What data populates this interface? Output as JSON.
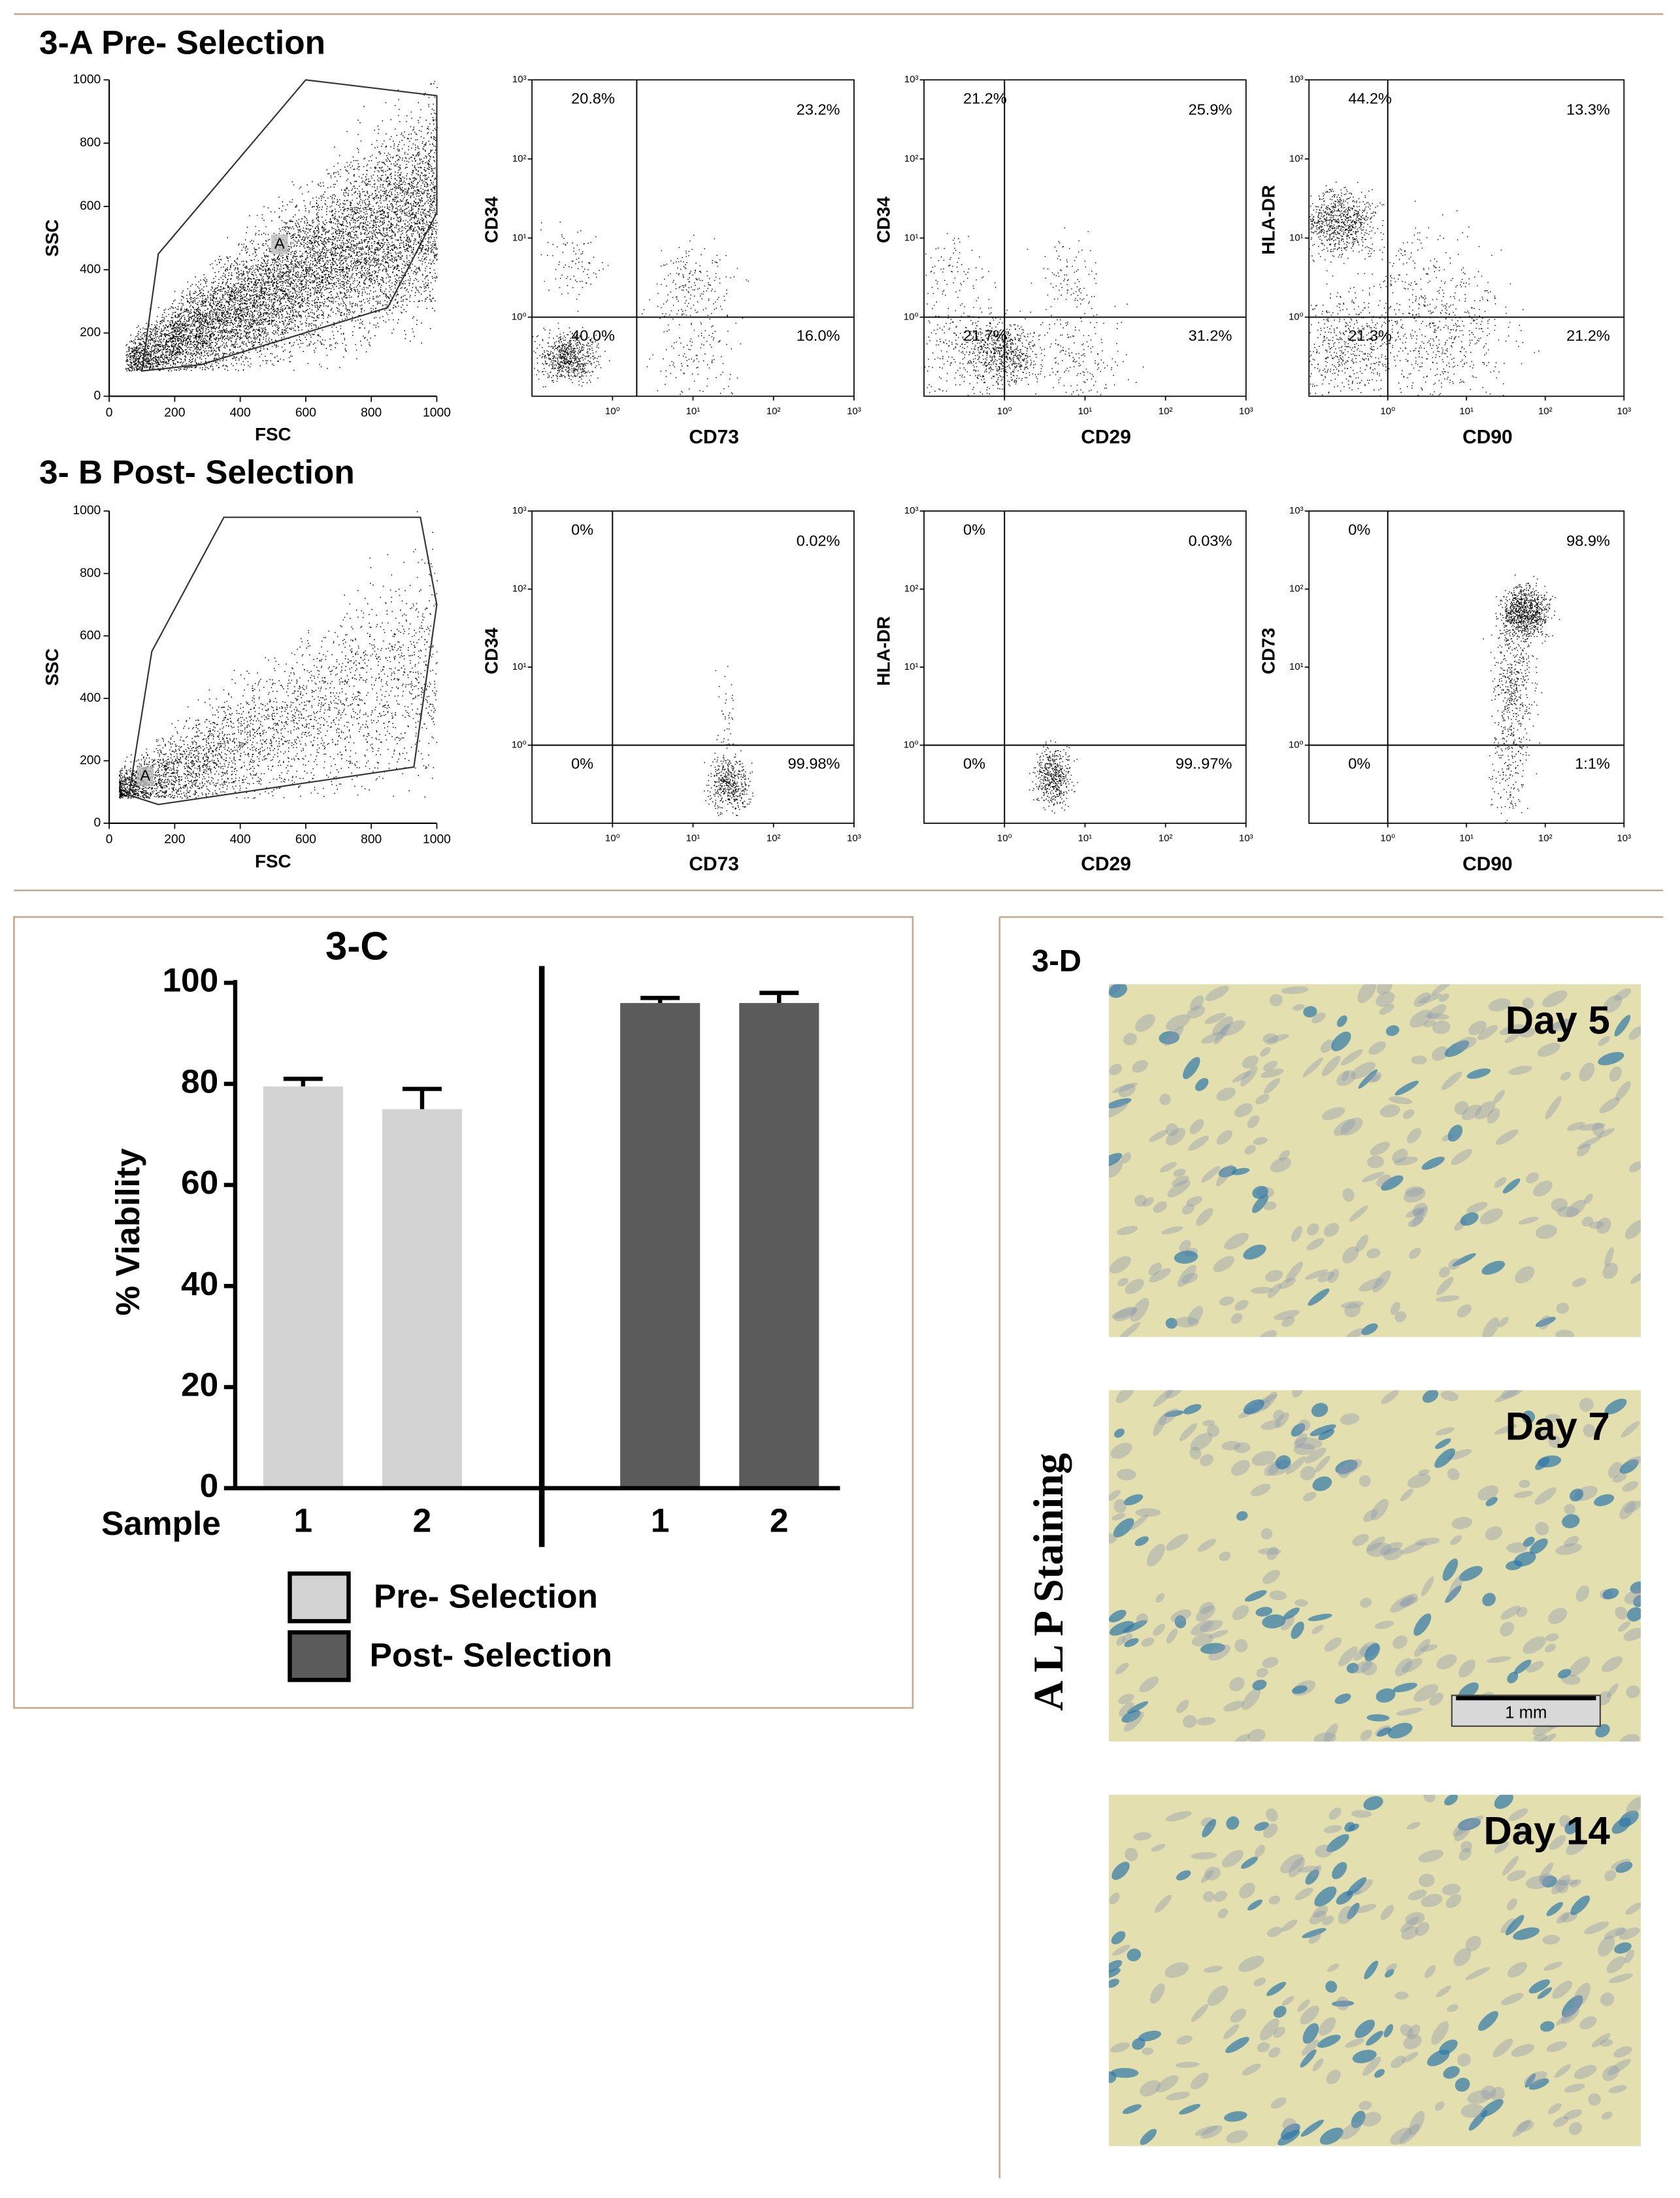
{
  "figure": {
    "panels": [
      {
        "title": "3-A Pre- Selection",
        "gate_plot": {
          "xlabel": "FSC",
          "ylabel": "SSC",
          "gate_label": "A"
        },
        "flow_plots": [
          {
            "xlabel": "CD73",
            "ylabel": "CD34",
            "gate": [
              2,
              1
            ],
            "quadrants": [
              "20.8%",
              "23.2%",
              "40.0%",
              "16.0%"
            ]
          },
          {
            "xlabel": "CD29",
            "ylabel": "CD34",
            "gate": [
              1,
              1
            ],
            "quadrants": [
              "21.2%",
              "25.9%",
              "21.7%",
              "31.2%"
            ]
          },
          {
            "xlabel": "CD90",
            "ylabel": "HLA-DR",
            "gate": [
              1,
              1
            ],
            "quadrants": [
              "44.2%",
              "13.3%",
              "21.3%",
              "21.2%"
            ]
          }
        ]
      },
      {
        "title": "3- B Post- Selection",
        "gate_plot": {
          "xlabel": "FSC",
          "ylabel": "SSC",
          "gate_label": "A"
        },
        "flow_plots": [
          {
            "xlabel": "CD73",
            "ylabel": "CD34",
            "gate": [
              1,
              1
            ],
            "quadrants": [
              "0%",
              "0.02%",
              "0%",
              "99.98%"
            ]
          },
          {
            "xlabel": "CD29",
            "ylabel": "HLA-DR",
            "gate": [
              1,
              1
            ],
            "quadrants": [
              "0%",
              "0.03%",
              "0%",
              "99..97%"
            ]
          },
          {
            "xlabel": "CD90",
            "ylabel": "CD73",
            "gate": [
              1,
              1
            ],
            "quadrants": [
              "0%",
              "98.9%",
              "0%",
              "1:1%"
            ]
          }
        ]
      }
    ],
    "gate_axis": {
      "lim": [
        0,
        1000
      ],
      "ticks": [
        0,
        200,
        400,
        600,
        800,
        1000
      ]
    },
    "log_axis": {
      "lim": [
        0.1,
        1000
      ],
      "log": true,
      "ticks": [
        {
          "value": 1,
          "label": "10⁰"
        },
        {
          "value": 10,
          "label": "10¹"
        },
        {
          "value": 100,
          "label": "10²"
        },
        {
          "value": 1000,
          "label": "10³"
        }
      ]
    },
    "panel_d": {
      "label": "3-D",
      "side_label": "A L P Staining",
      "images": [
        "Day 5",
        "Day 7",
        "Day 14"
      ],
      "scale_bar": "1 mm"
    }
  },
  "chart_data": {
    "type": "bar",
    "title": "3-C",
    "xlabel": "Sample",
    "ylabel": "% Viability",
    "categories": [
      "1",
      "2",
      "1",
      "2"
    ],
    "ylim": [
      0,
      100
    ],
    "yticks": [
      0,
      20,
      40,
      60,
      80,
      100
    ],
    "series": [
      {
        "name": "Pre- Selection",
        "color": "#d3d3d3",
        "values": [
          79.5,
          75,
          null,
          null
        ],
        "errors": [
          1.5,
          4,
          null,
          null
        ]
      },
      {
        "name": "Post- Selection",
        "color": "#5b5b5b",
        "values": [
          null,
          null,
          96,
          96
        ],
        "errors": [
          null,
          null,
          1,
          2
        ]
      }
    ]
  }
}
